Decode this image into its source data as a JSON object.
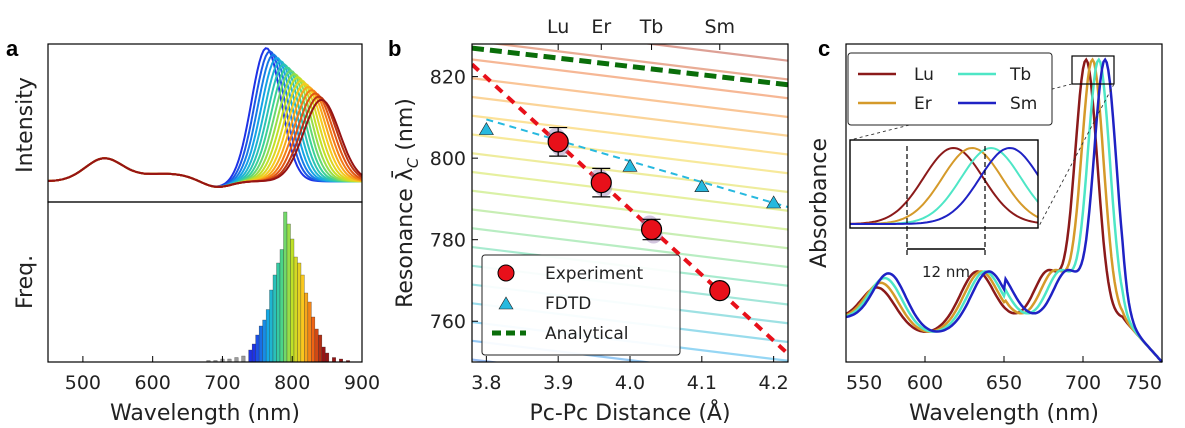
{
  "panel_letters": {
    "a": "a",
    "b": "b",
    "c": "c"
  },
  "chart_data": [
    {
      "type": "line",
      "panel": "a-top",
      "ylabel": "Intensity",
      "xlim": [
        450,
        900
      ],
      "description_series": "family of scattering spectra with resonance peaks shifting from ~763 nm (blue) to ~840 nm (dark red); common bump near 530 nm",
      "peak_wavelengths": [
        763,
        768,
        773,
        778,
        783,
        788,
        793,
        798,
        803,
        808,
        813,
        818,
        823,
        828,
        833,
        838,
        842
      ],
      "shoulder_peak_x": 530
    },
    {
      "type": "bar",
      "panel": "a-bottom",
      "xlabel": "Wavelength (nm)",
      "ylabel": "Freq.",
      "xlim": [
        450,
        900
      ],
      "xticks": [
        "500",
        "600",
        "700",
        "800",
        "900"
      ],
      "bin_centers": [
        680,
        690,
        700,
        710,
        720,
        730,
        740,
        745,
        750,
        755,
        760,
        765,
        770,
        775,
        780,
        785,
        790,
        795,
        800,
        805,
        810,
        815,
        820,
        825,
        830,
        835,
        840,
        845,
        850,
        860,
        870,
        880
      ],
      "values": [
        1,
        1,
        2,
        2,
        3,
        4,
        8,
        12,
        18,
        24,
        28,
        35,
        48,
        58,
        66,
        75,
        100,
        92,
        82,
        70,
        66,
        58,
        46,
        40,
        30,
        22,
        18,
        10,
        6,
        3,
        2,
        1
      ]
    },
    {
      "type": "scatter",
      "panel": "b",
      "xlabel": "Pc-Pc Distance (Å)",
      "ylabel": "Resonance λ̄",
      "ylabel_sub": "C",
      "ylabel_unit": " (nm)",
      "xlim": [
        3.78,
        4.22
      ],
      "ylim": [
        750,
        828
      ],
      "xticks": [
        "3.8",
        "3.9",
        "4.0",
        "4.1",
        "4.2"
      ],
      "yticks": [
        "760",
        "780",
        "800",
        "820"
      ],
      "top_labels": [
        {
          "label": "Lu",
          "x": 3.9
        },
        {
          "label": "Er",
          "x": 3.96
        },
        {
          "label": "Tb",
          "x": 4.03
        },
        {
          "label": "Sm",
          "x": 4.125
        }
      ],
      "series": [
        {
          "name": "Experiment",
          "color": "#e8101a",
          "x": [
            3.9,
            3.96,
            4.03,
            4.125
          ],
          "y": [
            804,
            794,
            782.5,
            767.5
          ],
          "err": [
            3.5,
            3.5,
            2.5,
            0
          ]
        },
        {
          "name": "FDTD",
          "color": "#27b9df",
          "x": [
            3.8,
            4.0,
            4.1,
            4.2
          ],
          "y": [
            807,
            798,
            793,
            789
          ]
        },
        {
          "name": "Analytical",
          "color": "#0a6e0a",
          "x": [
            3.78,
            4.22
          ],
          "y": [
            827,
            818
          ]
        }
      ],
      "experiment_fit": {
        "color": "#e8101a",
        "x": [
          3.78,
          4.22
        ],
        "y": [
          823,
          752
        ]
      },
      "fdtd_fit": {
        "color": "#27b9df",
        "x": [
          3.8,
          4.22
        ],
        "y": [
          809.5,
          788
        ]
      }
    },
    {
      "type": "line",
      "panel": "c",
      "xlabel": "Wavelength (nm)",
      "ylabel": "Absorbance",
      "xlim": [
        550,
        750
      ],
      "xticks": [
        "550",
        "600",
        "650",
        "700",
        "750"
      ],
      "series": [
        {
          "name": "Lu",
          "color": "#8b1a1a",
          "peak": 702
        },
        {
          "name": "Er",
          "color": "#d59a2a",
          "peak": 706
        },
        {
          "name": "Tb",
          "color": "#4ee6c6",
          "peak": 710
        },
        {
          "name": "Sm",
          "color": "#1f22c4",
          "peak": 714
        }
      ],
      "inset_annotation": "12 nm"
    }
  ]
}
